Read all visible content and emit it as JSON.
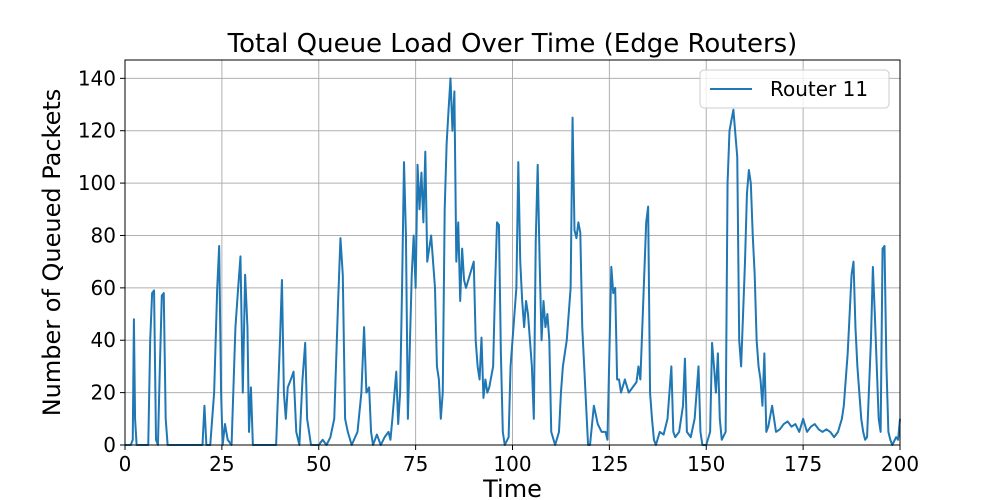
{
  "chart_data": {
    "type": "line",
    "title": "Total Queue Load Over Time (Edge Routers)",
    "xlabel": "Time",
    "ylabel": "Number of Queued Packets",
    "xlim": [
      0,
      200
    ],
    "ylim": [
      0,
      147
    ],
    "xticks": [
      0,
      25,
      50,
      75,
      100,
      125,
      150,
      175,
      200
    ],
    "yticks": [
      0,
      20,
      40,
      60,
      80,
      100,
      120,
      140
    ],
    "grid": true,
    "legend_position": "top-right",
    "series": [
      {
        "name": "Router 11",
        "color": "#1f77b4",
        "points": [
          [
            0,
            0
          ],
          [
            1.5,
            0
          ],
          [
            2,
            2
          ],
          [
            2.3,
            48
          ],
          [
            2.6,
            10
          ],
          [
            3,
            0
          ],
          [
            6,
            0
          ],
          [
            6.5,
            40
          ],
          [
            7,
            58
          ],
          [
            7.5,
            59
          ],
          [
            8,
            2
          ],
          [
            8.5,
            0
          ],
          [
            9,
            30
          ],
          [
            9.5,
            57
          ],
          [
            10,
            58
          ],
          [
            10.5,
            10
          ],
          [
            11,
            0
          ],
          [
            20,
            0
          ],
          [
            20.5,
            15
          ],
          [
            21,
            0
          ],
          [
            22,
            0
          ],
          [
            23,
            20
          ],
          [
            23.8,
            60
          ],
          [
            24.3,
            76
          ],
          [
            24.8,
            20
          ],
          [
            25.2,
            0
          ],
          [
            25.8,
            8
          ],
          [
            26.5,
            2
          ],
          [
            27.5,
            0
          ],
          [
            28.5,
            45
          ],
          [
            29.2,
            60
          ],
          [
            29.8,
            72
          ],
          [
            30.4,
            20
          ],
          [
            31,
            65
          ],
          [
            31.6,
            45
          ],
          [
            32,
            5
          ],
          [
            32.5,
            22
          ],
          [
            33,
            0
          ],
          [
            39,
            0
          ],
          [
            40,
            40
          ],
          [
            40.5,
            63
          ],
          [
            41,
            20
          ],
          [
            41.5,
            10
          ],
          [
            42,
            22
          ],
          [
            42.8,
            25
          ],
          [
            43.5,
            28
          ],
          [
            44.2,
            5
          ],
          [
            45,
            0
          ],
          [
            45.8,
            25
          ],
          [
            46.5,
            39
          ],
          [
            47,
            10
          ],
          [
            48,
            0
          ],
          [
            50,
            0
          ],
          [
            51,
            2
          ],
          [
            52,
            0
          ],
          [
            53,
            3
          ],
          [
            54,
            10
          ],
          [
            55,
            55
          ],
          [
            55.6,
            79
          ],
          [
            56.2,
            65
          ],
          [
            56.8,
            10
          ],
          [
            57.5,
            5
          ],
          [
            58.5,
            0
          ],
          [
            60,
            5
          ],
          [
            61,
            20
          ],
          [
            61.7,
            45
          ],
          [
            62.3,
            20
          ],
          [
            63,
            22
          ],
          [
            63.5,
            5
          ],
          [
            64,
            0
          ],
          [
            65,
            4
          ],
          [
            66,
            0
          ],
          [
            67,
            3
          ],
          [
            68,
            5
          ],
          [
            68.5,
            2
          ],
          [
            69,
            10
          ],
          [
            70,
            28
          ],
          [
            70.5,
            8
          ],
          [
            71,
            20
          ],
          [
            71.5,
            60
          ],
          [
            72,
            108
          ],
          [
            72.5,
            80
          ],
          [
            73,
            10
          ],
          [
            74,
            65
          ],
          [
            74.5,
            80
          ],
          [
            75,
            60
          ],
          [
            75.5,
            107
          ],
          [
            76,
            90
          ],
          [
            76.5,
            104
          ],
          [
            77,
            85
          ],
          [
            77.5,
            112
          ],
          [
            78,
            70
          ],
          [
            79,
            80
          ],
          [
            80,
            60
          ],
          [
            80.5,
            30
          ],
          [
            81,
            25
          ],
          [
            81.5,
            10
          ],
          [
            82,
            20
          ],
          [
            82.5,
            90
          ],
          [
            83,
            115
          ],
          [
            83.5,
            128
          ],
          [
            84,
            140
          ],
          [
            84.5,
            120
          ],
          [
            85,
            135
          ],
          [
            85.5,
            70
          ],
          [
            86,
            85
          ],
          [
            86.5,
            55
          ],
          [
            87,
            75
          ],
          [
            87.5,
            63
          ],
          [
            88,
            60
          ],
          [
            89,
            65
          ],
          [
            90,
            70
          ],
          [
            90.5,
            40
          ],
          [
            91,
            30
          ],
          [
            91.5,
            25
          ],
          [
            92,
            41
          ],
          [
            92.5,
            18
          ],
          [
            93,
            25
          ],
          [
            93.5,
            20
          ],
          [
            94,
            22
          ],
          [
            95,
            30
          ],
          [
            95.5,
            60
          ],
          [
            96,
            85
          ],
          [
            96.5,
            84
          ],
          [
            97,
            35
          ],
          [
            97.5,
            5
          ],
          [
            98,
            0
          ],
          [
            99,
            3
          ],
          [
            99.5,
            30
          ],
          [
            100,
            40
          ],
          [
            100.5,
            50
          ],
          [
            101,
            60
          ],
          [
            101.5,
            108
          ],
          [
            102,
            70
          ],
          [
            102.5,
            55
          ],
          [
            103,
            45
          ],
          [
            103.5,
            55
          ],
          [
            104,
            50
          ],
          [
            105,
            30
          ],
          [
            105.5,
            10
          ],
          [
            106,
            78
          ],
          [
            106.5,
            107
          ],
          [
            107,
            70
          ],
          [
            107.5,
            40
          ],
          [
            108,
            55
          ],
          [
            108.5,
            45
          ],
          [
            109,
            50
          ],
          [
            109.5,
            40
          ],
          [
            110,
            5
          ],
          [
            111,
            0
          ],
          [
            112,
            5
          ],
          [
            112.5,
            20
          ],
          [
            113,
            30
          ],
          [
            113.5,
            35
          ],
          [
            114,
            40
          ],
          [
            115,
            60
          ],
          [
            115.5,
            125
          ],
          [
            116,
            82
          ],
          [
            116.5,
            79
          ],
          [
            117,
            85
          ],
          [
            117.5,
            81
          ],
          [
            118,
            45
          ],
          [
            119,
            15
          ],
          [
            119.5,
            0
          ],
          [
            120,
            0
          ],
          [
            121,
            15
          ],
          [
            122,
            8
          ],
          [
            123,
            5
          ],
          [
            124,
            5
          ],
          [
            124.5,
            2
          ],
          [
            125,
            35
          ],
          [
            125.5,
            68
          ],
          [
            126,
            58
          ],
          [
            126.5,
            60
          ],
          [
            127,
            25
          ],
          [
            127.5,
            25
          ],
          [
            128,
            20
          ],
          [
            129,
            25
          ],
          [
            130,
            20
          ],
          [
            131,
            22
          ],
          [
            132,
            24
          ],
          [
            132.5,
            30
          ],
          [
            133,
            25
          ],
          [
            134,
            65
          ],
          [
            134.5,
            85
          ],
          [
            135,
            91
          ],
          [
            135.5,
            20
          ],
          [
            136,
            10
          ],
          [
            136.5,
            2
          ],
          [
            137,
            0
          ],
          [
            138,
            5
          ],
          [
            139,
            4
          ],
          [
            140,
            10
          ],
          [
            141,
            30
          ],
          [
            141.5,
            5
          ],
          [
            142,
            3
          ],
          [
            143,
            5
          ],
          [
            144,
            15
          ],
          [
            144.5,
            33
          ],
          [
            145,
            5
          ],
          [
            146,
            3
          ],
          [
            147,
            10
          ],
          [
            148,
            30
          ],
          [
            148.5,
            5
          ],
          [
            149,
            0
          ],
          [
            150,
            0
          ],
          [
            151,
            5
          ],
          [
            151.5,
            39
          ],
          [
            152,
            30
          ],
          [
            152.5,
            20
          ],
          [
            153,
            35
          ],
          [
            153.5,
            10
          ],
          [
            154,
            2
          ],
          [
            155,
            5
          ],
          [
            155.5,
            100
          ],
          [
            156,
            120
          ],
          [
            157,
            128
          ],
          [
            158,
            110
          ],
          [
            158.5,
            40
          ],
          [
            159,
            30
          ],
          [
            160,
            70
          ],
          [
            160.5,
            96
          ],
          [
            161,
            105
          ],
          [
            161.5,
            100
          ],
          [
            162,
            80
          ],
          [
            162.5,
            65
          ],
          [
            163,
            40
          ],
          [
            163.5,
            30
          ],
          [
            164,
            25
          ],
          [
            164.5,
            15
          ],
          [
            165,
            35
          ],
          [
            165.5,
            5
          ],
          [
            166,
            7
          ],
          [
            167,
            15
          ],
          [
            168,
            5
          ],
          [
            169,
            6
          ],
          [
            170,
            8
          ],
          [
            171,
            9
          ],
          [
            172,
            7
          ],
          [
            173,
            8
          ],
          [
            174,
            5
          ],
          [
            175,
            10
          ],
          [
            176,
            5
          ],
          [
            177,
            7
          ],
          [
            178,
            8
          ],
          [
            179,
            6
          ],
          [
            180,
            5
          ],
          [
            181,
            6
          ],
          [
            182,
            5
          ],
          [
            183,
            3
          ],
          [
            184,
            5
          ],
          [
            185,
            10
          ],
          [
            185.5,
            15
          ],
          [
            186,
            25
          ],
          [
            186.5,
            35
          ],
          [
            187,
            50
          ],
          [
            187.5,
            65
          ],
          [
            188,
            70
          ],
          [
            188.5,
            45
          ],
          [
            189,
            30
          ],
          [
            189.5,
            20
          ],
          [
            190,
            10
          ],
          [
            190.5,
            5
          ],
          [
            191,
            2
          ],
          [
            191.5,
            3
          ],
          [
            192.5,
            40
          ],
          [
            193,
            68
          ],
          [
            193.5,
            50
          ],
          [
            194,
            30
          ],
          [
            194.5,
            10
          ],
          [
            195,
            5
          ],
          [
            195.5,
            75
          ],
          [
            196,
            76
          ],
          [
            196.5,
            30
          ],
          [
            197,
            5
          ],
          [
            197.5,
            2
          ],
          [
            198,
            0
          ],
          [
            199,
            3
          ],
          [
            199.5,
            2
          ],
          [
            200,
            10
          ]
        ]
      }
    ]
  }
}
